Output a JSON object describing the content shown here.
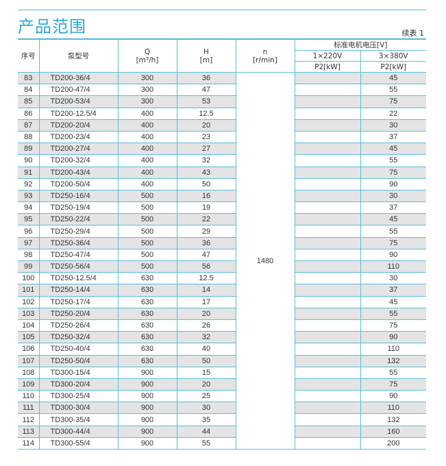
{
  "title": "产品范围",
  "continued": "续表 1",
  "headers": {
    "no": "序号",
    "model": "泵型号",
    "q": "Q",
    "q_unit": "[m³/h]",
    "h": "H",
    "h_unit": "[m]",
    "n": "n",
    "n_unit": "[r/min]",
    "voltage": "标准电机电压[V]",
    "v1": "1×220V",
    "v3": "3×380V",
    "p1": "P2[kW]",
    "p3": "P2[kW]"
  },
  "speed": "1480",
  "rows": [
    [
      "83",
      "TD200-36/4",
      "300",
      "36",
      "",
      "45"
    ],
    [
      "84",
      "TD200-47/4",
      "300",
      "47",
      "",
      "55"
    ],
    [
      "85",
      "TD200-53/4",
      "300",
      "53",
      "",
      "75"
    ],
    [
      "86",
      "TD200-12.5/4",
      "400",
      "12.5",
      "",
      "22"
    ],
    [
      "87",
      "TD200-20/4",
      "400",
      "20",
      "",
      "30"
    ],
    [
      "88",
      "TD200-23/4",
      "400",
      "23",
      "",
      "37"
    ],
    [
      "89",
      "TD200-27/4",
      "400",
      "27",
      "",
      "45"
    ],
    [
      "90",
      "TD200-32/4",
      "400",
      "32",
      "",
      "55"
    ],
    [
      "91",
      "TD200-43/4",
      "400",
      "43",
      "",
      "75"
    ],
    [
      "92",
      "TD200-50/4",
      "400",
      "50",
      "",
      "90"
    ],
    [
      "93",
      "TD250-16/4",
      "500",
      "16",
      "",
      "30"
    ],
    [
      "94",
      "TD250-19/4",
      "500",
      "19",
      "",
      "37"
    ],
    [
      "95",
      "TD250-22/4",
      "500",
      "22",
      "",
      "45"
    ],
    [
      "96",
      "TD250-29/4",
      "500",
      "29",
      "",
      "55"
    ],
    [
      "97",
      "TD250-36/4",
      "500",
      "36",
      "",
      "75"
    ],
    [
      "98",
      "TD250-47/4",
      "500",
      "47",
      "",
      "90"
    ],
    [
      "99",
      "TD250-56/4",
      "500",
      "56",
      "",
      "110"
    ],
    [
      "100",
      "TD250-12.5/4",
      "630",
      "12.5",
      "",
      "30"
    ],
    [
      "101",
      "TD250-14/4",
      "630",
      "14",
      "",
      "37"
    ],
    [
      "102",
      "TD250-17/4",
      "630",
      "17",
      "",
      "45"
    ],
    [
      "103",
      "TD250-20/4",
      "630",
      "20",
      "",
      "55"
    ],
    [
      "104",
      "TD250-26/4",
      "630",
      "26",
      "",
      "75"
    ],
    [
      "105",
      "TD250-32/4",
      "630",
      "32",
      "",
      "90"
    ],
    [
      "106",
      "TD250-40/4",
      "630",
      "40",
      "",
      "110"
    ],
    [
      "107",
      "TD250-50/4",
      "630",
      "50",
      "",
      "132"
    ],
    [
      "108",
      "TD300-15/4",
      "900",
      "15",
      "",
      "55"
    ],
    [
      "109",
      "TD300-20/4",
      "900",
      "20",
      "",
      "75"
    ],
    [
      "110",
      "TD300-25/4",
      "900",
      "25",
      "",
      "90"
    ],
    [
      "111",
      "TD300-30/4",
      "900",
      "30",
      "",
      "110"
    ],
    [
      "112",
      "TD300-35/4",
      "900",
      "35",
      "",
      "132"
    ],
    [
      "113",
      "TD300-44/4",
      "900",
      "44",
      "",
      "160"
    ],
    [
      "114",
      "TD300-55/4",
      "900",
      "55",
      "",
      "200"
    ]
  ]
}
